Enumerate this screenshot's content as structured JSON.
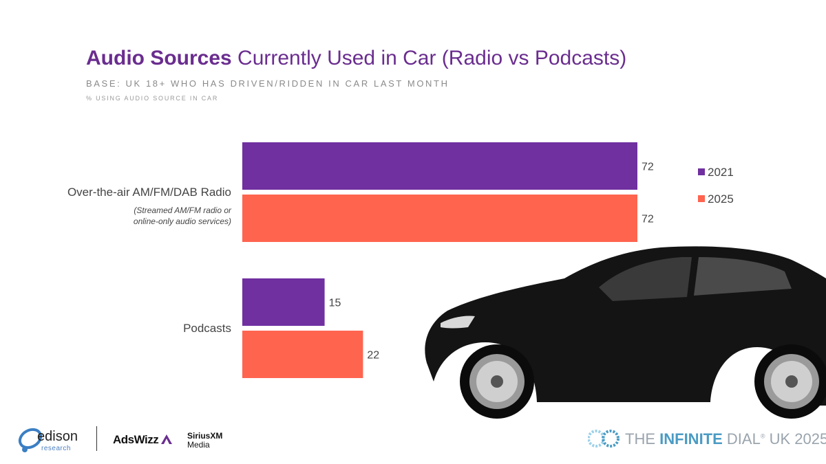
{
  "header": {
    "title_bold": "Audio Sources",
    "title_rest": " Currently Used in Car (Radio vs Podcasts)",
    "subtitle": "BASE: UK 18+ WHO HAS DRIVEN/RIDDEN IN CAR LAST MONTH",
    "note": "% USING AUDIO SOURCE IN CAR"
  },
  "categories_text": {
    "radio": "Over-the-air AM/FM/DAB Radio",
    "radio_sub_1": "(Streamed AM/FM radio or",
    "radio_sub_2": "online-only audio services)",
    "podcasts": "Podcasts"
  },
  "legend": {
    "s2021": "2021",
    "s2025": "2025"
  },
  "chart_data": {
    "type": "bar",
    "orientation": "horizontal",
    "title": "Audio Sources Currently Used in Car (Radio vs Podcasts)",
    "subtitle": "BASE: UK 18+ WHO HAS DRIVEN/RIDDEN IN CAR LAST MONTH",
    "xlabel": "% USING AUDIO SOURCE IN CAR",
    "categories": [
      "Over-the-air AM/FM/DAB Radio",
      "Podcasts"
    ],
    "series": [
      {
        "name": "2021",
        "color": "#7030a0",
        "values": [
          72,
          15
        ]
      },
      {
        "name": "2025",
        "color": "#ff644f",
        "values": [
          72,
          22
        ]
      }
    ],
    "xlim": [
      0,
      100
    ],
    "grid": false,
    "legend_position": "right"
  },
  "footer": {
    "edison": "edison",
    "edison_sub": "research",
    "adswizz": "AdsWizz",
    "sirius_line1": "SiriusXM",
    "sirius_line2": "Media",
    "dial_pre": "THE ",
    "dial_bold": "INFINITE",
    "dial_mid": " DIAL",
    "dial_reg": "®",
    "dial_post": " UK 2025"
  }
}
